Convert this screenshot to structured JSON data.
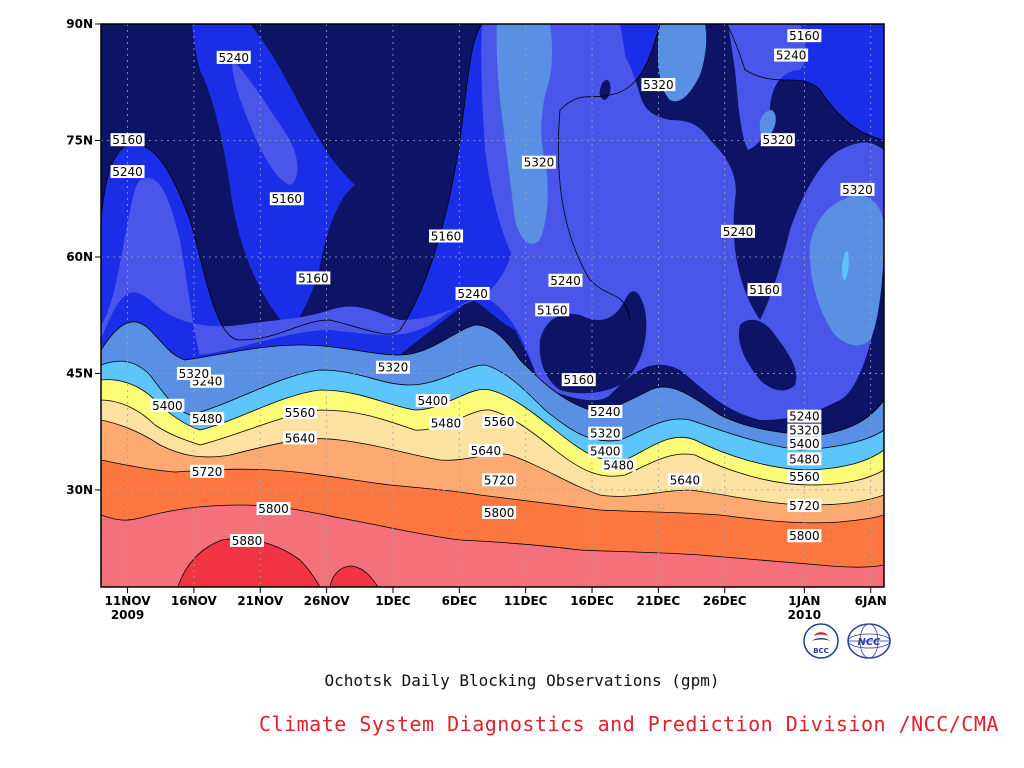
{
  "chart_data": {
    "type": "contour",
    "title": "Ochotsk Daily Blocking Observations (gpm)",
    "xlabel": "",
    "ylabel": "",
    "x_range": [
      "2009-11-09",
      "2010-01-07"
    ],
    "y_range_deg_n": [
      17.5,
      90
    ],
    "x_ticks": [
      {
        "date": "2009-11-11",
        "label": "11NOV",
        "sublabel": "2009"
      },
      {
        "date": "2009-11-16",
        "label": "16NOV",
        "sublabel": ""
      },
      {
        "date": "2009-11-21",
        "label": "21NOV",
        "sublabel": ""
      },
      {
        "date": "2009-11-26",
        "label": "26NOV",
        "sublabel": ""
      },
      {
        "date": "2009-12-01",
        "label": "1DEC",
        "sublabel": ""
      },
      {
        "date": "2009-12-06",
        "label": "6DEC",
        "sublabel": ""
      },
      {
        "date": "2009-12-11",
        "label": "11DEC",
        "sublabel": ""
      },
      {
        "date": "2009-12-16",
        "label": "16DEC",
        "sublabel": ""
      },
      {
        "date": "2009-12-21",
        "label": "21DEC",
        "sublabel": ""
      },
      {
        "date": "2009-12-26",
        "label": "26DEC",
        "sublabel": ""
      },
      {
        "date": "2010-01-01",
        "label": "1JAN",
        "sublabel": "2010"
      },
      {
        "date": "2010-01-06",
        "label": "6JAN",
        "sublabel": ""
      }
    ],
    "y_ticks": [
      {
        "value": 30,
        "label": "30N"
      },
      {
        "value": 45,
        "label": "45N"
      },
      {
        "value": 60,
        "label": "60N"
      },
      {
        "value": 75,
        "label": "75N"
      },
      {
        "value": 90,
        "label": "90N"
      }
    ],
    "grid": true,
    "contour_levels": [
      5160,
      5240,
      5320,
      5400,
      5480,
      5560,
      5640,
      5720,
      5800,
      5880
    ],
    "level_colors": {
      "below_5160": "#0d1466",
      "5160-5240": "#1a2ee8",
      "5240-5320": "#4a55ea",
      "5320-5400": "#5a90e4",
      "5400-5480": "#5cc6fc",
      "5480-5560": "#fcfc78",
      "5560-5640": "#fce2a0",
      "5640-5720": "#fcaa72",
      "5720-5800": "#fc7840",
      "5800-5880": "#f4707a",
      "above_5880": "#f03444"
    },
    "contour_label_values": [
      {
        "date": "2009-11-11",
        "lat": 75.1,
        "value": 5160
      },
      {
        "date": "2009-11-11",
        "lat": 71.0,
        "value": 5240
      },
      {
        "date": "2009-11-19",
        "lat": 85.7,
        "value": 5240
      },
      {
        "date": "2009-11-23",
        "lat": 67.5,
        "value": 5160
      },
      {
        "date": "2009-11-25",
        "lat": 57.3,
        "value": 5160
      },
      {
        "date": "2009-11-17",
        "lat": 44.0,
        "value": 5240
      },
      {
        "date": "2009-11-16",
        "lat": 45.0,
        "value": 5320
      },
      {
        "date": "2009-11-14",
        "lat": 40.9,
        "value": 5400
      },
      {
        "date": "2009-11-17",
        "lat": 39.2,
        "value": 5480
      },
      {
        "date": "2009-11-24",
        "lat": 40.0,
        "value": 5560
      },
      {
        "date": "2009-11-24",
        "lat": 36.7,
        "value": 5640
      },
      {
        "date": "2009-11-17",
        "lat": 32.4,
        "value": 5720
      },
      {
        "date": "2009-11-22",
        "lat": 27.6,
        "value": 5800
      },
      {
        "date": "2009-11-20",
        "lat": 23.5,
        "value": 5880
      },
      {
        "date": "2009-12-01",
        "lat": 45.8,
        "value": 5320
      },
      {
        "date": "2009-12-05",
        "lat": 62.7,
        "value": 5160
      },
      {
        "date": "2009-12-07",
        "lat": 55.3,
        "value": 5240
      },
      {
        "date": "2009-12-04",
        "lat": 41.5,
        "value": 5400
      },
      {
        "date": "2009-12-05",
        "lat": 38.6,
        "value": 5480
      },
      {
        "date": "2009-12-09",
        "lat": 38.8,
        "value": 5560
      },
      {
        "date": "2009-12-08",
        "lat": 35.1,
        "value": 5640
      },
      {
        "date": "2009-12-09",
        "lat": 31.3,
        "value": 5720
      },
      {
        "date": "2009-12-09",
        "lat": 27.1,
        "value": 5800
      },
      {
        "date": "2009-12-12",
        "lat": 72.2,
        "value": 5320
      },
      {
        "date": "2009-12-14",
        "lat": 57.0,
        "value": 5240
      },
      {
        "date": "2009-12-13",
        "lat": 53.2,
        "value": 5160
      },
      {
        "date": "2009-12-15",
        "lat": 44.2,
        "value": 5160
      },
      {
        "date": "2009-12-17",
        "lat": 40.1,
        "value": 5240
      },
      {
        "date": "2009-12-17",
        "lat": 37.3,
        "value": 5320
      },
      {
        "date": "2009-12-17",
        "lat": 35.0,
        "value": 5400
      },
      {
        "date": "2009-12-18",
        "lat": 33.2,
        "value": 5480
      },
      {
        "date": "2009-12-21",
        "lat": 82.2,
        "value": 5320
      },
      {
        "date": "2009-12-23",
        "lat": 31.3,
        "value": 5640
      },
      {
        "date": "2009-12-27",
        "lat": 63.3,
        "value": 5240
      },
      {
        "date": "2009-12-29",
        "lat": 55.8,
        "value": 5160
      },
      {
        "date": "2009-12-30",
        "lat": 75.1,
        "value": 5320
      },
      {
        "date": "2009-12-31",
        "lat": 86.0,
        "value": 5240
      },
      {
        "date": "2010-01-01",
        "lat": 88.5,
        "value": 5160
      },
      {
        "date": "2010-01-01",
        "lat": 39.5,
        "value": 5240
      },
      {
        "date": "2010-01-01",
        "lat": 37.7,
        "value": 5320
      },
      {
        "date": "2010-01-01",
        "lat": 36.0,
        "value": 5400
      },
      {
        "date": "2010-01-01",
        "lat": 34.0,
        "value": 5480
      },
      {
        "date": "2010-01-01",
        "lat": 31.7,
        "value": 5560
      },
      {
        "date": "2010-01-01",
        "lat": 28.0,
        "value": 5720
      },
      {
        "date": "2010-01-01",
        "lat": 24.1,
        "value": 5800
      },
      {
        "date": "2010-01-05",
        "lat": 68.7,
        "value": 5320
      }
    ]
  },
  "caption": {
    "title": "Ochotsk Daily Blocking Observations (gpm)",
    "credit": "Climate System Diagnostics and Prediction Division /NCC/CMA"
  },
  "logos": {
    "left_text": "BCC",
    "right_text": "NCC"
  }
}
